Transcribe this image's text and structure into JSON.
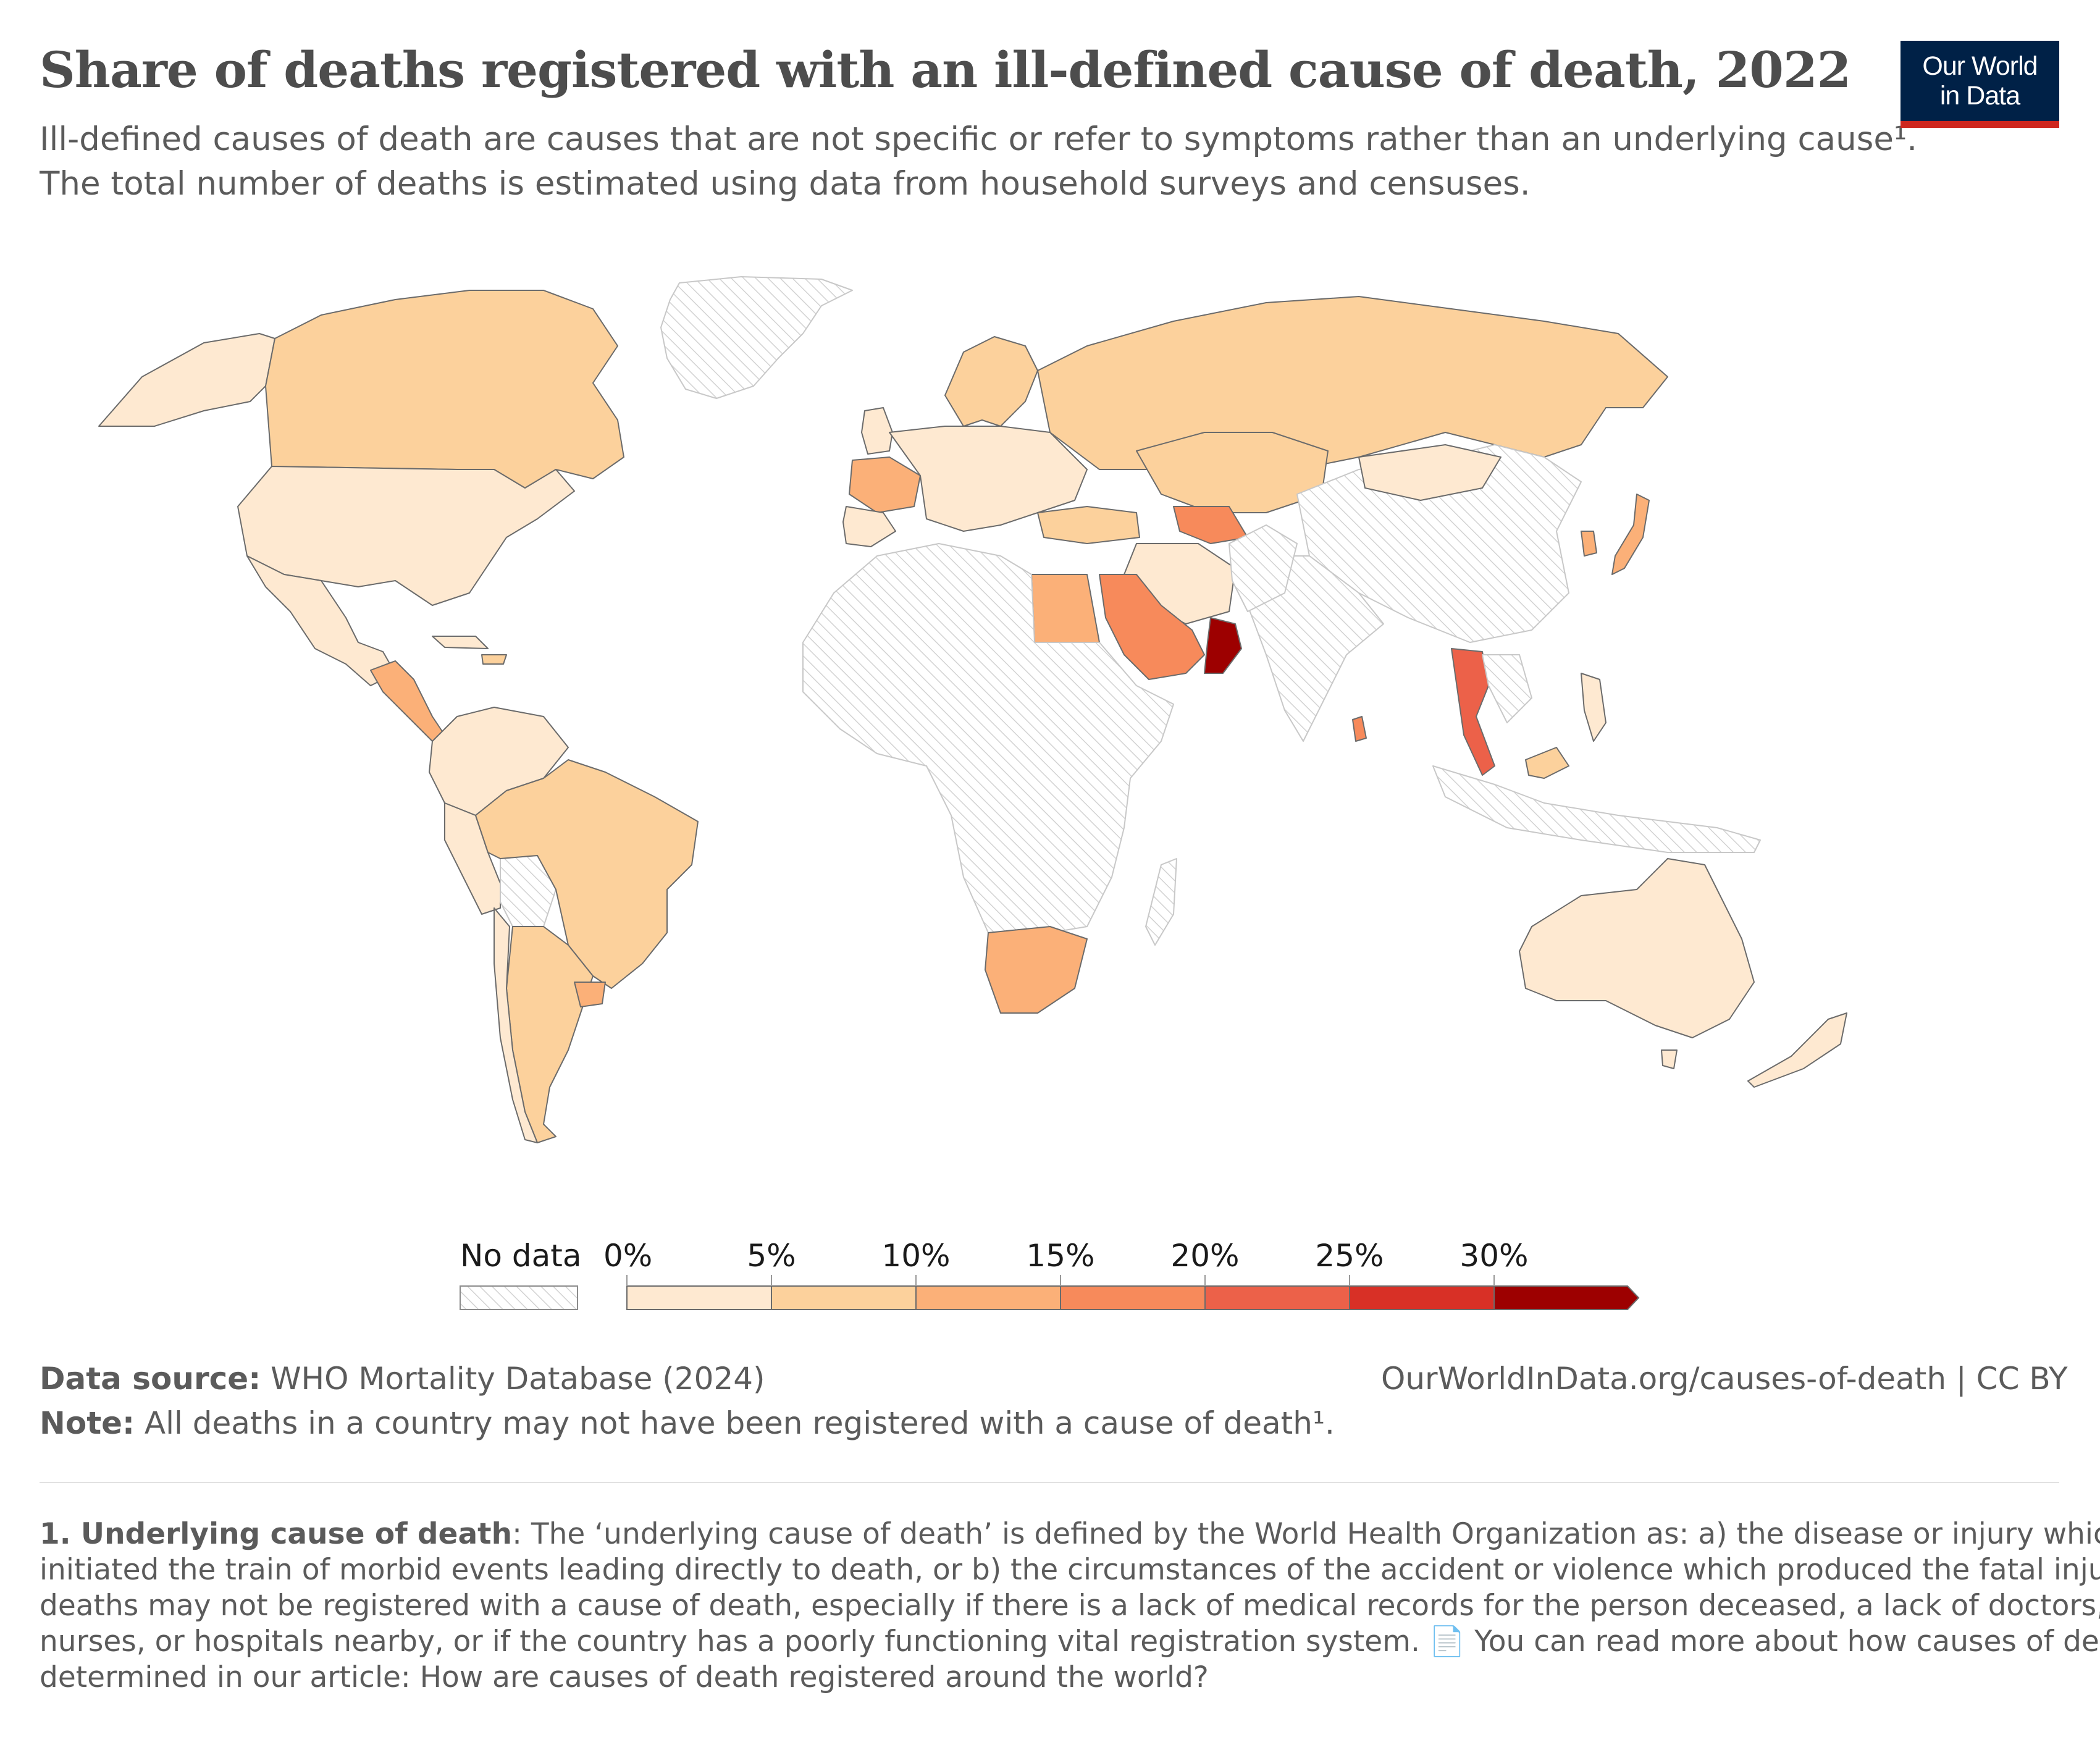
{
  "header": {
    "title": "Share of deaths registered with an ill-defined cause of death, 2022",
    "subtitle_line1": "Ill-defined causes of death are causes that are not specific or refer to symptoms rather than an underlying cause¹.",
    "subtitle_line2": "The total number of deaths is estimated using data from household surveys and censuses."
  },
  "logo": {
    "line1": "Our World",
    "line2": "in Data"
  },
  "map": {
    "no_data_label": "No data",
    "legend_ticks": [
      "0%",
      "5%",
      "10%",
      "15%",
      "20%",
      "25%",
      "30%"
    ],
    "legend_bins": [
      {
        "from": 0,
        "to": 5,
        "color": "#fee9d1"
      },
      {
        "from": 5,
        "to": 10,
        "color": "#fcd19c"
      },
      {
        "from": 10,
        "to": 15,
        "color": "#fbb078"
      },
      {
        "from": 15,
        "to": 20,
        "color": "#f78a5b"
      },
      {
        "from": 20,
        "to": 25,
        "color": "#ec6149"
      },
      {
        "from": 25,
        "to": 30,
        "color": "#d83026"
      },
      {
        "from": 30,
        "to": null,
        "color": "#9d0000"
      }
    ],
    "colors": {
      "no_data_stroke": "#c8c8c8",
      "border": "#6b6b6b"
    }
  },
  "footer": {
    "source_label": "Data source:",
    "source_text": " WHO Mortality Database (2024)",
    "url_text": "OurWorldInData.org/causes-of-death | CC BY",
    "note_label": "Note:",
    "note_text": " All deaths in a country may not have been registered with a cause of death¹."
  },
  "footnote": {
    "label": "1. Underlying cause of death",
    "line1": ": The ‘underlying cause of death’ is defined by the World Health Organization as: a) the disease or injury which",
    "line2": "initiated the train of morbid events leading directly to death, or b) the circumstances of the accident or violence which produced the fatal injury. Some",
    "line3": "deaths may not be registered with a cause of death, especially if there is a lack of medical records for the person deceased, a lack of doctors,",
    "line4": "nurses, or hospitals nearby, or if the country has a poorly functioning vital registration system. 📄 You can read more about how causes of death are",
    "line5": "determined in our article: How are causes of death registered around the world?"
  }
}
